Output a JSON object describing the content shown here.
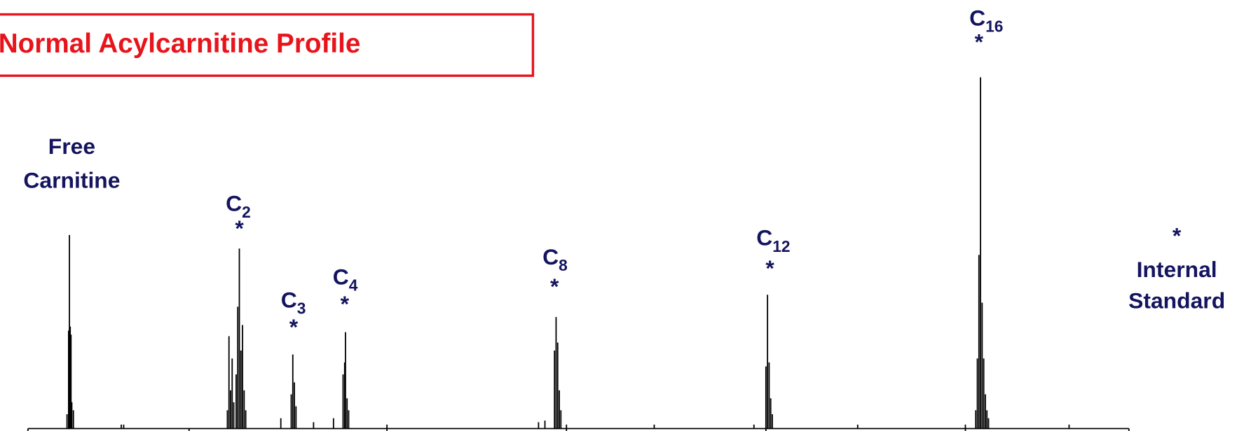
{
  "title": "Normal Acylcarnitine Profile",
  "free_carnitine": [
    "Free",
    "Carnitine"
  ],
  "marker": "*",
  "labels": [
    {
      "base": "C",
      "sub": "2"
    },
    {
      "base": "C",
      "sub": "3"
    },
    {
      "base": "C",
      "sub": "4"
    },
    {
      "base": "C",
      "sub": "8"
    },
    {
      "base": "C",
      "sub": "12"
    },
    {
      "base": "C",
      "sub": "16"
    }
  ],
  "legend": [
    "Internal",
    "Standard"
  ]
}
